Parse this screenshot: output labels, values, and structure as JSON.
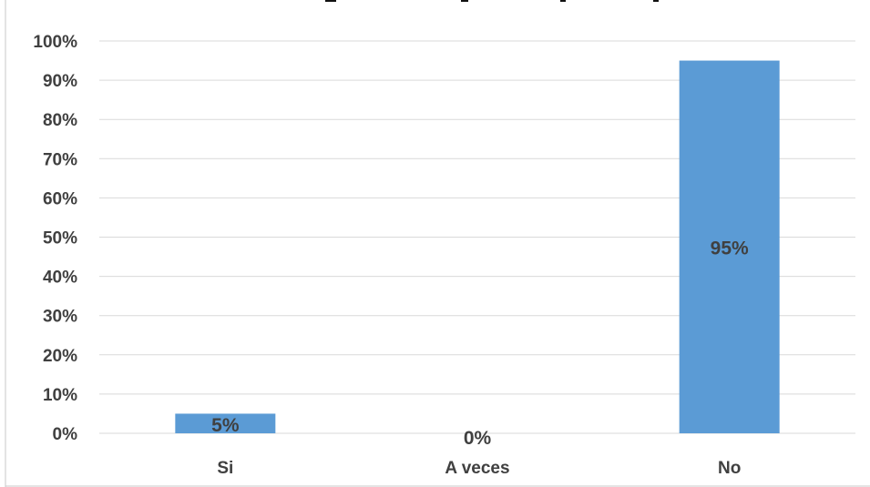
{
  "chart_data": {
    "type": "bar",
    "categories": [
      "Si",
      "A veces",
      "No"
    ],
    "values": [
      5,
      0,
      95
    ],
    "data_labels": [
      "5%",
      "0%",
      "95%"
    ],
    "ylim": [
      0,
      100
    ],
    "ytick_labels": [
      "0%",
      "10%",
      "20%",
      "30%",
      "40%",
      "50%",
      "60%",
      "70%",
      "80%",
      "90%",
      "100%"
    ],
    "bar_color": "#5b9bd5",
    "grid": true,
    "legend": "none"
  }
}
